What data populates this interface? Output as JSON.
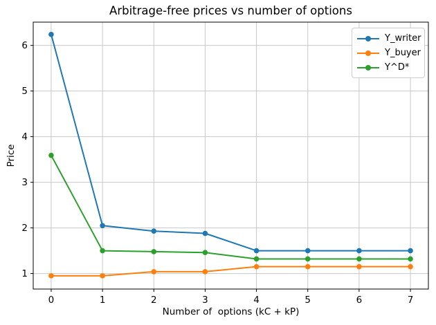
{
  "figure": {
    "background": "#ffffff",
    "text_color": "#000000",
    "spine_color": "#000000"
  },
  "chart_data": {
    "type": "line",
    "title": "Arbitrage-free prices vs number of options",
    "xlabel": "Number of  options (kC + kP)",
    "ylabel": "Price",
    "x": [
      0,
      1,
      2,
      3,
      4,
      5,
      6,
      7
    ],
    "series": [
      {
        "name": "Y_writer",
        "color": "#1f77b4",
        "marker": "circle",
        "values": [
          6.24,
          2.05,
          1.93,
          1.88,
          1.5,
          1.5,
          1.5,
          1.5
        ]
      },
      {
        "name": "Y_buyer",
        "color": "#ff7f0e",
        "marker": "circle",
        "values": [
          0.95,
          0.95,
          1.04,
          1.04,
          1.15,
          1.15,
          1.15,
          1.15
        ]
      },
      {
        "name": "Y^D*",
        "color": "#2ca02c",
        "marker": "circle",
        "values": [
          3.59,
          1.5,
          1.48,
          1.46,
          1.32,
          1.32,
          1.32,
          1.32
        ]
      }
    ],
    "xticks": [
      0,
      1,
      2,
      3,
      4,
      5,
      6,
      7
    ],
    "yticks": [
      1,
      2,
      3,
      4,
      5,
      6
    ],
    "xlim": [
      -0.35,
      7.35
    ],
    "ylim": [
      0.66,
      6.51
    ],
    "grid": true,
    "grid_color": "#c8c8c8",
    "legend_position": "upper-right",
    "legend_entries": [
      "Y_writer",
      "Y_buyer",
      "Y^D*"
    ]
  }
}
